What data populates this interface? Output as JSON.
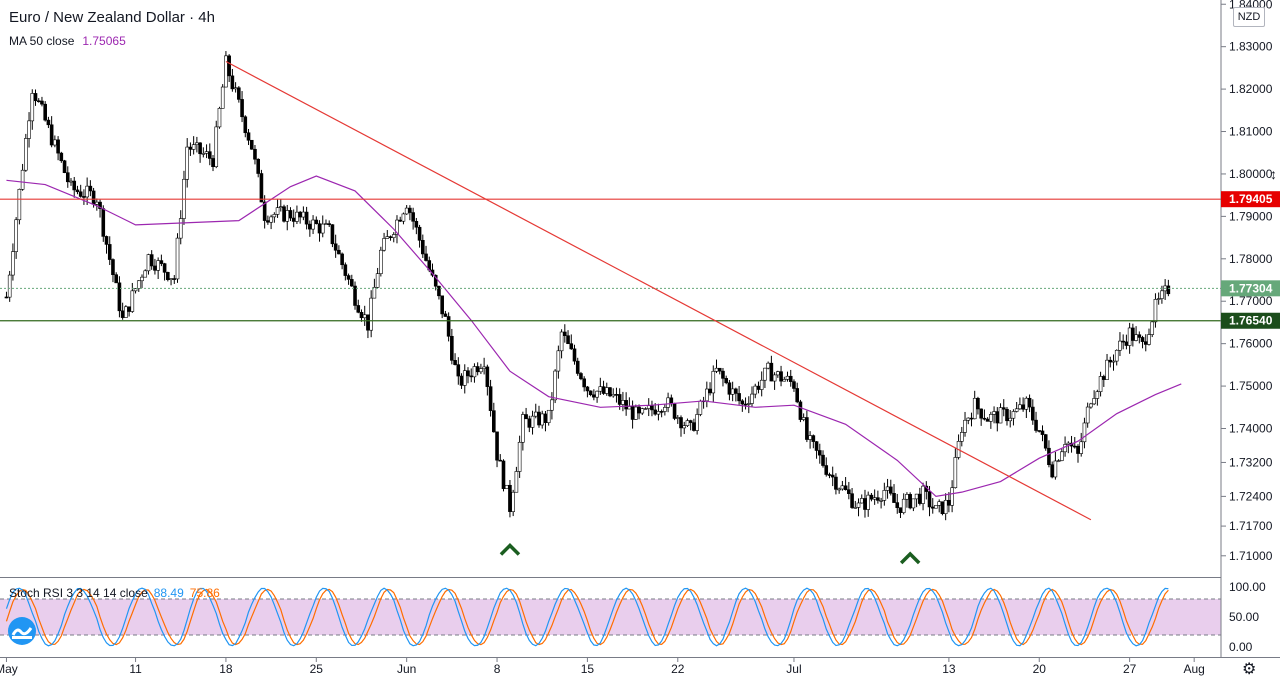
{
  "header": {
    "title": "Euro / New Zealand Dollar · 4h",
    "ma_label": "MA 50 close",
    "ma_value": "1.75065",
    "currency": "NZD"
  },
  "stoch": {
    "label": "Stoch RSI 3 3 14 14 close",
    "k_value": "88.49",
    "d_value": "75.86",
    "ticks": [
      "100.00",
      "50.00",
      "0.00"
    ],
    "upper_band": 80,
    "lower_band": 20
  },
  "colors": {
    "up": "#26a69a",
    "down": "#ef5350",
    "candle_body_up": "#ffffff",
    "candle_body_down": "#000000",
    "ma": "#9c27b0",
    "resistance": "#e53935",
    "support": "#33691e",
    "trend": "#e53935",
    "stoch_k": "#2196f3",
    "stoch_d": "#ff6d00",
    "band_fill": "#e1bee7",
    "current": "#66a87a"
  },
  "chart_data": {
    "type": "candlestick",
    "y_ticks": [
      "1.84000",
      "1.83000",
      "1.82000",
      "1.81000",
      "1.80000",
      "1.79000",
      "1.78000",
      "1.77000",
      "1.76000",
      "1.75000",
      "1.74000",
      "1.73200",
      "1.72400",
      "1.71700",
      "1.71000"
    ],
    "ylim": [
      1.705,
      1.841
    ],
    "x_ticks": [
      "May",
      "11",
      "18",
      "25",
      "Jun",
      "8",
      "15",
      "22",
      "Jul",
      "13",
      "20",
      "27",
      "Aug"
    ],
    "price_labels": {
      "resistance": "1.79405",
      "current": "1.77304",
      "support": "1.76540"
    },
    "horizontal_levels": {
      "resistance": 1.79405,
      "current": 1.77304,
      "support": 1.7654
    },
    "trendline": {
      "from": {
        "date": "May 18",
        "price": 1.8265
      },
      "to": {
        "date": "Jul 24",
        "price": 1.7185
      }
    },
    "marker_lows": [
      {
        "date": "Jun 9",
        "price": 1.7195
      },
      {
        "date": "Jul 10",
        "price": 1.7175
      }
    ],
    "close_path": [
      {
        "date": "May 1",
        "price": 1.771
      },
      {
        "date": "May 3",
        "price": 1.8205
      },
      {
        "date": "May 6",
        "price": 1.7965
      },
      {
        "date": "May 8",
        "price": 1.7945
      },
      {
        "date": "May 10",
        "price": 1.7655
      },
      {
        "date": "May 12",
        "price": 1.7805
      },
      {
        "date": "May 14",
        "price": 1.7755
      },
      {
        "date": "May 15",
        "price": 1.8065
      },
      {
        "date": "May 17",
        "price": 1.8035
      },
      {
        "date": "May 18",
        "price": 1.826
      },
      {
        "date": "May 20",
        "price": 1.8065
      },
      {
        "date": "May 21",
        "price": 1.7905
      },
      {
        "date": "May 23",
        "price": 1.7905
      },
      {
        "date": "May 26",
        "price": 1.7865
      },
      {
        "date": "May 28",
        "price": 1.771
      },
      {
        "date": "May 29",
        "price": 1.7645
      },
      {
        "date": "May 30",
        "price": 1.7815
      },
      {
        "date": "Jun 1",
        "price": 1.7935
      },
      {
        "date": "Jun 2",
        "price": 1.7845
      },
      {
        "date": "Jun 4",
        "price": 1.7655
      },
      {
        "date": "Jun 5",
        "price": 1.7505
      },
      {
        "date": "Jun 7",
        "price": 1.7565
      },
      {
        "date": "Jun 8",
        "price": 1.734
      },
      {
        "date": "Jun 9",
        "price": 1.7215
      },
      {
        "date": "Jun 10",
        "price": 1.7415
      },
      {
        "date": "Jun 12",
        "price": 1.7425
      },
      {
        "date": "Jun 13",
        "price": 1.7625
      },
      {
        "date": "Jun 15",
        "price": 1.7495
      },
      {
        "date": "Jun 17",
        "price": 1.7475
      },
      {
        "date": "Jun 19",
        "price": 1.7425
      },
      {
        "date": "Jun 21",
        "price": 1.7465
      },
      {
        "date": "Jun 23",
        "price": 1.7395
      },
      {
        "date": "Jun 25",
        "price": 1.7535
      },
      {
        "date": "Jun 27",
        "price": 1.7455
      },
      {
        "date": "Jun 29",
        "price": 1.7535
      },
      {
        "date": "Jul 1",
        "price": 1.7505
      },
      {
        "date": "Jul 2",
        "price": 1.7375
      },
      {
        "date": "Jul 4",
        "price": 1.7285
      },
      {
        "date": "Jul 6",
        "price": 1.7215
      },
      {
        "date": "Jul 8",
        "price": 1.7255
      },
      {
        "date": "Jul 9",
        "price": 1.7215
      },
      {
        "date": "Jul 11",
        "price": 1.7245
      },
      {
        "date": "Jul 12",
        "price": 1.7205
      },
      {
        "date": "Jul 13",
        "price": 1.7225
      },
      {
        "date": "Jul 14",
        "price": 1.7405
      },
      {
        "date": "Jul 15",
        "price": 1.7455
      },
      {
        "date": "Jul 16",
        "price": 1.7425
      },
      {
        "date": "Jul 18",
        "price": 1.7435
      },
      {
        "date": "Jul 19",
        "price": 1.7455
      },
      {
        "date": "Jul 20",
        "price": 1.7395
      },
      {
        "date": "Jul 21",
        "price": 1.7305
      },
      {
        "date": "Jul 22",
        "price": 1.7375
      },
      {
        "date": "Jul 23",
        "price": 1.7335
      },
      {
        "date": "Jul 24",
        "price": 1.7475
      },
      {
        "date": "Jul 26",
        "price": 1.7585
      },
      {
        "date": "Jul 27",
        "price": 1.7625
      },
      {
        "date": "Jul 28",
        "price": 1.7595
      },
      {
        "date": "Jul 29",
        "price": 1.7685
      },
      {
        "date": "Jul 30",
        "price": 1.773
      }
    ],
    "ma_path": [
      {
        "date": "May 1",
        "price": 1.7985
      },
      {
        "date": "May 4",
        "price": 1.7975
      },
      {
        "date": "May 8",
        "price": 1.7925
      },
      {
        "date": "May 11",
        "price": 1.788
      },
      {
        "date": "May 15",
        "price": 1.7885
      },
      {
        "date": "May 19",
        "price": 1.789
      },
      {
        "date": "May 23",
        "price": 1.797
      },
      {
        "date": "May 25",
        "price": 1.7995
      },
      {
        "date": "May 28",
        "price": 1.796
      },
      {
        "date": "May 31",
        "price": 1.787
      },
      {
        "date": "Jun 3",
        "price": 1.7765
      },
      {
        "date": "Jun 6",
        "price": 1.7655
      },
      {
        "date": "Jun 9",
        "price": 1.7535
      },
      {
        "date": "Jun 12",
        "price": 1.7475
      },
      {
        "date": "Jun 16",
        "price": 1.745
      },
      {
        "date": "Jun 20",
        "price": 1.7455
      },
      {
        "date": "Jun 24",
        "price": 1.7465
      },
      {
        "date": "Jun 28",
        "price": 1.745
      },
      {
        "date": "Jul 1",
        "price": 1.7455
      },
      {
        "date": "Jul 5",
        "price": 1.741
      },
      {
        "date": "Jul 9",
        "price": 1.7325
      },
      {
        "date": "Jul 12",
        "price": 1.724
      },
      {
        "date": "Jul 14",
        "price": 1.725
      },
      {
        "date": "Jul 17",
        "price": 1.7275
      },
      {
        "date": "Jul 20",
        "price": 1.733
      },
      {
        "date": "Jul 23",
        "price": 1.737
      },
      {
        "date": "Jul 26",
        "price": 1.7435
      },
      {
        "date": "Jul 29",
        "price": 1.748
      },
      {
        "date": "Jul 31",
        "price": 1.7505
      }
    ]
  }
}
